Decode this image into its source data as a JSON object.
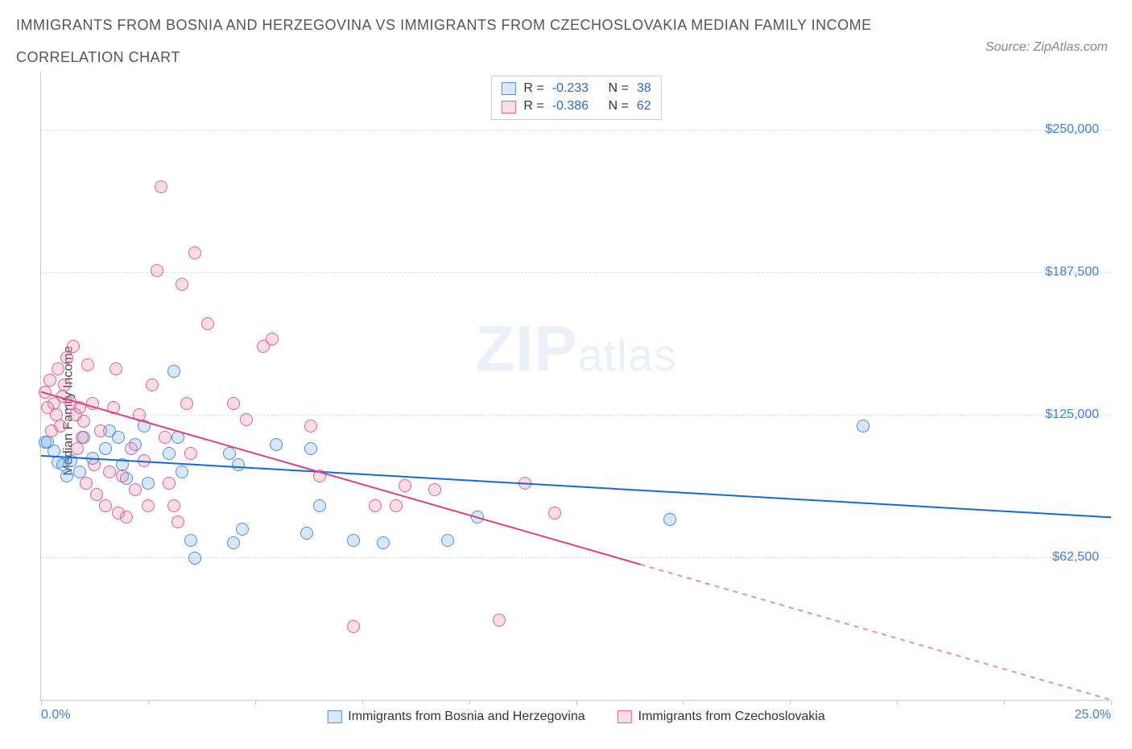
{
  "title_line1": "IMMIGRANTS FROM BOSNIA AND HERZEGOVINA VS IMMIGRANTS FROM CZECHOSLOVAKIA MEDIAN FAMILY INCOME",
  "title_line2": "CORRELATION CHART",
  "source": "Source: ZipAtlas.com",
  "ylabel": "Median Family Income",
  "watermark_zip": "ZIP",
  "watermark_atlas": "atlas",
  "chart": {
    "type": "scatter",
    "xlim": [
      0,
      25
    ],
    "ylim": [
      0,
      275000
    ],
    "x_ticks": [
      0,
      2.5,
      5,
      7.5,
      10,
      12.5,
      15,
      17.5,
      20,
      22.5,
      25
    ],
    "x_min_label": "0.0%",
    "x_max_label": "25.0%",
    "y_ticks": [
      {
        "v": 62500,
        "label": "$62,500"
      },
      {
        "v": 125000,
        "label": "$125,000"
      },
      {
        "v": 187500,
        "label": "$187,500"
      },
      {
        "v": 250000,
        "label": "$250,000"
      }
    ],
    "background": "#ffffff",
    "grid_color": "#dddddd",
    "axis_color": "#cccccc",
    "marker_radius": 8,
    "marker_stroke_width": 1.5,
    "series": [
      {
        "name": "Immigrants from Bosnia and Herzegovina",
        "fill": "rgba(100,160,240,0.25)",
        "stroke": "#4f8fe0",
        "line_color": "#1669d8",
        "line_width": 2,
        "R": "-0.233",
        "N": "38",
        "trend": {
          "x1": 0,
          "y1": 107000,
          "x2": 25,
          "y2": 80000,
          "solid_until_x": 25
        },
        "points": [
          [
            0.1,
            113000
          ],
          [
            0.15,
            113000
          ],
          [
            0.3,
            109000
          ],
          [
            0.4,
            104000
          ],
          [
            0.5,
            103000
          ],
          [
            0.6,
            98000
          ],
          [
            0.7,
            105000
          ],
          [
            0.9,
            100000
          ],
          [
            1.0,
            115000
          ],
          [
            1.2,
            106000
          ],
          [
            1.5,
            110000
          ],
          [
            1.6,
            118000
          ],
          [
            1.8,
            115000
          ],
          [
            1.9,
            103000
          ],
          [
            2.0,
            97000
          ],
          [
            2.2,
            112000
          ],
          [
            2.4,
            120000
          ],
          [
            2.5,
            95000
          ],
          [
            3.0,
            108000
          ],
          [
            3.1,
            144000
          ],
          [
            3.2,
            115000
          ],
          [
            3.3,
            100000
          ],
          [
            3.5,
            70000
          ],
          [
            3.6,
            62000
          ],
          [
            4.4,
            108000
          ],
          [
            4.5,
            69000
          ],
          [
            4.6,
            103000
          ],
          [
            4.7,
            75000
          ],
          [
            5.5,
            112000
          ],
          [
            6.2,
            73000
          ],
          [
            6.3,
            110000
          ],
          [
            6.5,
            85000
          ],
          [
            7.3,
            70000
          ],
          [
            8.0,
            69000
          ],
          [
            9.5,
            70000
          ],
          [
            10.2,
            80000
          ],
          [
            14.7,
            79000
          ],
          [
            19.2,
            120000
          ]
        ]
      },
      {
        "name": "Immigrants from Czechoslovakia",
        "fill": "rgba(240,120,160,0.25)",
        "stroke": "#e06090",
        "line_color": "#e04080",
        "line_width": 2,
        "R": "-0.386",
        "N": "62",
        "trend": {
          "x1": 0,
          "y1": 135000,
          "x2": 25,
          "y2": 0,
          "solid_until_x": 14
        },
        "points": [
          [
            0.1,
            135000
          ],
          [
            0.15,
            128000
          ],
          [
            0.2,
            140000
          ],
          [
            0.25,
            118000
          ],
          [
            0.3,
            130000
          ],
          [
            0.35,
            125000
          ],
          [
            0.4,
            145000
          ],
          [
            0.45,
            120000
          ],
          [
            0.5,
            133000
          ],
          [
            0.55,
            138000
          ],
          [
            0.6,
            150000
          ],
          [
            0.7,
            130000
          ],
          [
            0.75,
            155000
          ],
          [
            0.8,
            125000
          ],
          [
            0.85,
            110000
          ],
          [
            0.9,
            128000
          ],
          [
            0.95,
            115000
          ],
          [
            1.0,
            122000
          ],
          [
            1.05,
            95000
          ],
          [
            1.1,
            147000
          ],
          [
            1.2,
            130000
          ],
          [
            1.25,
            103000
          ],
          [
            1.3,
            90000
          ],
          [
            1.4,
            118000
          ],
          [
            1.5,
            85000
          ],
          [
            1.6,
            100000
          ],
          [
            1.7,
            128000
          ],
          [
            1.75,
            145000
          ],
          [
            1.8,
            82000
          ],
          [
            1.9,
            98000
          ],
          [
            2.0,
            80000
          ],
          [
            2.1,
            110000
          ],
          [
            2.2,
            92000
          ],
          [
            2.3,
            125000
          ],
          [
            2.4,
            105000
          ],
          [
            2.5,
            85000
          ],
          [
            2.6,
            138000
          ],
          [
            2.7,
            188000
          ],
          [
            2.8,
            225000
          ],
          [
            2.9,
            115000
          ],
          [
            3.0,
            95000
          ],
          [
            3.1,
            85000
          ],
          [
            3.2,
            78000
          ],
          [
            3.3,
            182000
          ],
          [
            3.4,
            130000
          ],
          [
            3.5,
            108000
          ],
          [
            3.6,
            196000
          ],
          [
            3.9,
            165000
          ],
          [
            4.5,
            130000
          ],
          [
            4.8,
            123000
          ],
          [
            5.2,
            155000
          ],
          [
            5.4,
            158000
          ],
          [
            6.3,
            120000
          ],
          [
            6.5,
            98000
          ],
          [
            7.3,
            32000
          ],
          [
            7.8,
            85000
          ],
          [
            8.3,
            85000
          ],
          [
            8.5,
            94000
          ],
          [
            9.2,
            92000
          ],
          [
            10.7,
            35000
          ],
          [
            11.3,
            95000
          ],
          [
            12.0,
            82000
          ]
        ]
      }
    ]
  },
  "legend_top": {
    "R_label": "R =",
    "N_label": "N ="
  }
}
